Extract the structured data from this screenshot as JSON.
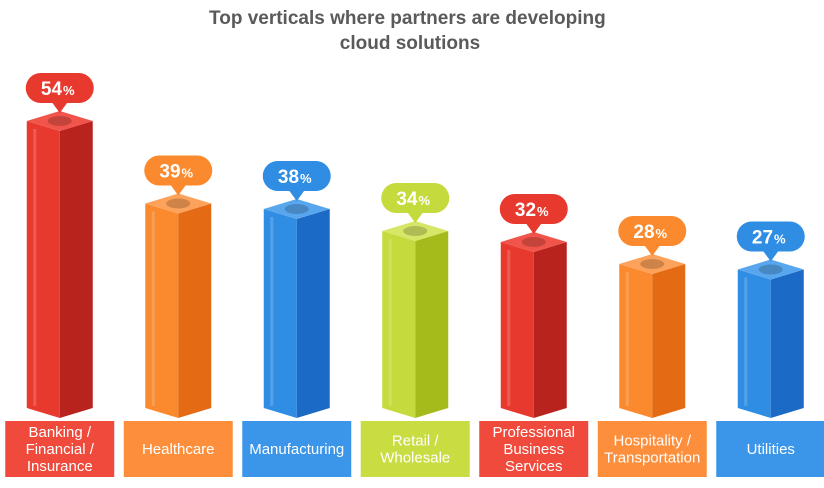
{
  "chart_data": {
    "type": "bar",
    "title": "Top verticals where partners are developing cloud solutions",
    "title_lines": [
      "Top verticals where partners are developing",
      "cloud solutions"
    ],
    "unit": "%",
    "categories": [
      "Banking / Financial / Insurance",
      "Healthcare",
      "Manufacturing",
      "Retail / Wholesale",
      "Professional Business Services",
      "Hospitality / Transportation",
      "Utilities"
    ],
    "category_lines": [
      [
        "Banking /",
        "Financial /",
        "Insurance"
      ],
      [
        "Healthcare"
      ],
      [
        "Manufacturing"
      ],
      [
        "Retail /",
        "Wholesale"
      ],
      [
        "Professional",
        "Business",
        "Services"
      ],
      [
        "Hospitality /",
        "Transportation"
      ],
      [
        "Utilities"
      ]
    ],
    "values": [
      54,
      39,
      38,
      34,
      32,
      28,
      27
    ],
    "colors": [
      "red",
      "orange",
      "blue",
      "green",
      "red",
      "orange",
      "blue"
    ],
    "palette": {
      "red": {
        "front": "#e8392e",
        "side": "#b8231d",
        "top": "#f0544a",
        "bubble": "#e8392e",
        "label": "#ef4a3c"
      },
      "orange": {
        "front": "#fb8a2e",
        "side": "#e56a14",
        "top": "#fca25a",
        "bubble": "#fb8a2e",
        "label": "#fd8f3c"
      },
      "blue": {
        "front": "#2f8de4",
        "side": "#1a6ac6",
        "top": "#57a6ee",
        "bubble": "#2f8de4",
        "label": "#3b95e8"
      },
      "green": {
        "front": "#c5da3c",
        "side": "#a5bb1c",
        "top": "#d6e667",
        "bubble": "#c5da3c",
        "label": "#c9dc42"
      }
    }
  }
}
